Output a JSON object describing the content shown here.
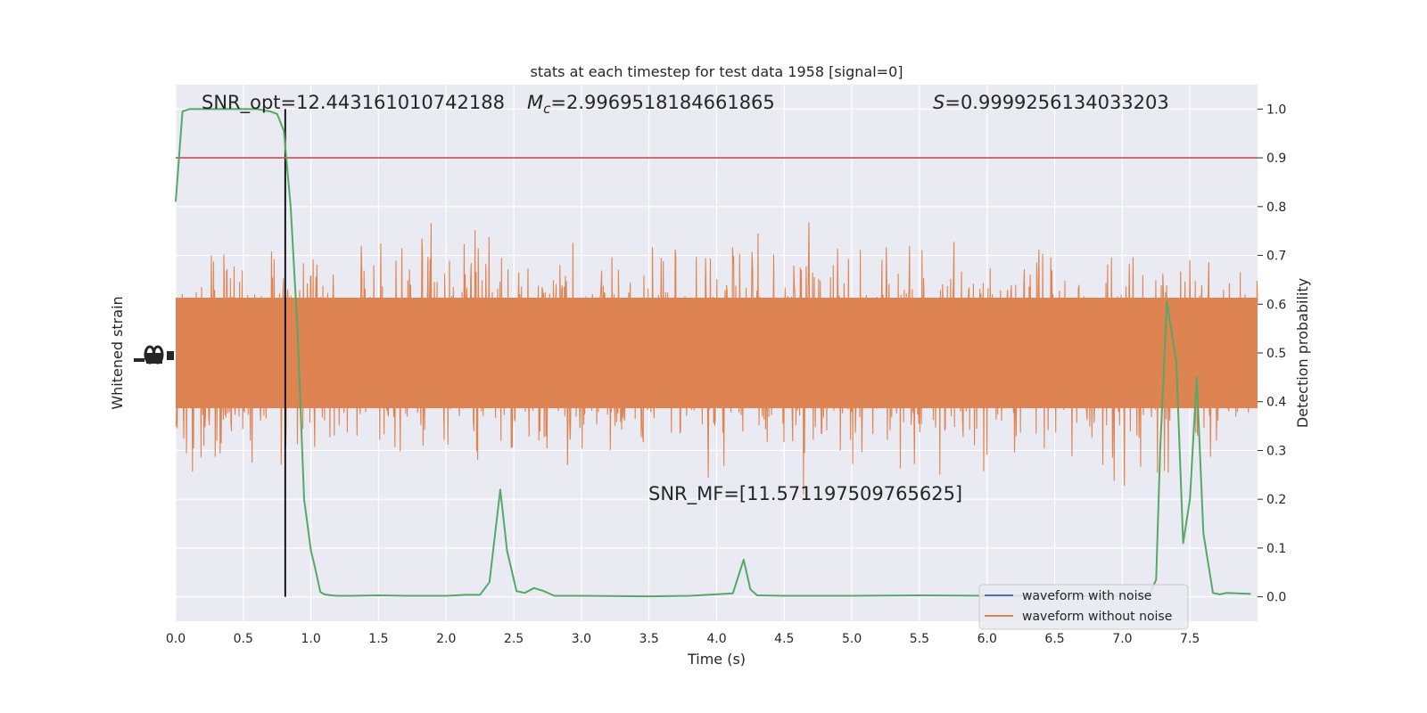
{
  "chart_data": {
    "type": "line",
    "title": "stats at each timestep for test data 1958 [signal=0]",
    "xlabel": "Time (s)",
    "ylabel_left": "Whitened strain",
    "ylabel_right": "Detection probability",
    "xlim": [
      0.0,
      8.0
    ],
    "ylim_right": [
      -0.05,
      1.05
    ],
    "x_ticks": [
      "0.0",
      "0.5",
      "1.0",
      "1.5",
      "2.0",
      "2.5",
      "3.0",
      "3.5",
      "4.0",
      "4.5",
      "5.0",
      "5.5",
      "6.0",
      "6.5",
      "7.0",
      "7.5"
    ],
    "y_ticks_right": [
      "0.0",
      "0.1",
      "0.2",
      "0.3",
      "0.4",
      "0.5",
      "0.6",
      "0.7",
      "0.8",
      "0.9",
      "1.0"
    ],
    "grid": true,
    "legend_position": "lower-right",
    "annotations": {
      "snr_opt": "SNR_opt=12.443161010742188",
      "mc_label": "M",
      "mc_sub": "c",
      "mc_value": "=2.9969518184661865",
      "s_label": "S",
      "s_value": "=0.9999256134033203",
      "snr_mf": "SNR_MF=[11.571197509765625]"
    },
    "threshold": {
      "y": 0.9,
      "color": "#c44e52"
    },
    "marker_time": 0.81,
    "series": [
      {
        "name": "waveform with noise",
        "color": "#4c72b0"
      },
      {
        "name": "waveform without noise",
        "color": "#dd8452"
      },
      {
        "color": "#55a868",
        "x": [
          0.0,
          0.05,
          0.1,
          0.2,
          0.3,
          0.4,
          0.5,
          0.6,
          0.7,
          0.75,
          0.8,
          0.85,
          0.9,
          0.95,
          1.0,
          1.03,
          1.07,
          1.1,
          1.15,
          1.2,
          1.3,
          1.5,
          1.7,
          2.0,
          2.15,
          2.25,
          2.32,
          2.4,
          2.45,
          2.52,
          2.58,
          2.65,
          2.72,
          2.8,
          3.0,
          3.5,
          3.8,
          4.05,
          4.12,
          4.2,
          4.25,
          4.3,
          4.5,
          5.0,
          5.5,
          6.0,
          6.5,
          7.0,
          7.2,
          7.25,
          7.28,
          7.33,
          7.4,
          7.45,
          7.5,
          7.55,
          7.6,
          7.67,
          7.72,
          7.77,
          7.85,
          7.95
        ],
        "y": [
          0.81,
          0.995,
          1.0,
          1.0,
          1.0,
          1.0,
          1.0,
          1.0,
          0.995,
          0.99,
          0.955,
          0.8,
          0.55,
          0.2,
          0.095,
          0.06,
          0.01,
          0.005,
          0.003,
          0.002,
          0.002,
          0.003,
          0.002,
          0.002,
          0.004,
          0.004,
          0.03,
          0.22,
          0.095,
          0.012,
          0.008,
          0.018,
          0.012,
          0.002,
          0.002,
          0.001,
          0.002,
          0.006,
          0.007,
          0.076,
          0.015,
          0.003,
          0.002,
          0.002,
          0.003,
          0.002,
          0.002,
          0.002,
          0.005,
          0.035,
          0.3,
          0.605,
          0.48,
          0.11,
          0.2,
          0.45,
          0.13,
          0.008,
          0.005,
          0.008,
          0.007,
          0.006
        ]
      }
    ]
  }
}
